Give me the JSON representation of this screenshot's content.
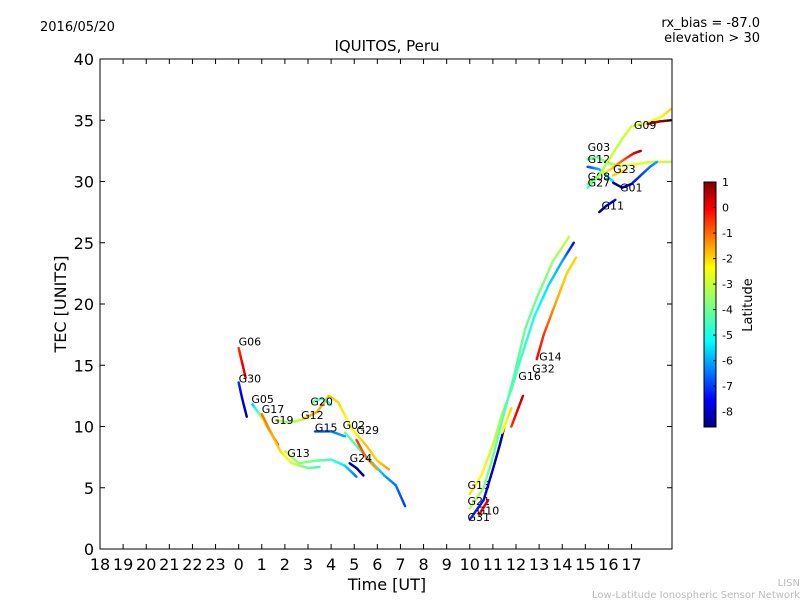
{
  "header": {
    "date": "2016/05/20",
    "rx_bias": "rx_bias = -87.0",
    "elevation": "elevation > 30"
  },
  "footer": {
    "line1": "LISN",
    "line2": "Low-Latitude Ionospheric Sensor Network"
  },
  "chart_data": {
    "type": "scatter",
    "title": "IQUITOS, Peru",
    "xlabel": "Time [UT]",
    "ylabel": "TEC [UNITS]",
    "xlim": [
      18,
      42.75
    ],
    "ylim": [
      0,
      40
    ],
    "x_ticks": [
      18,
      19,
      20,
      21,
      22,
      23,
      24,
      25,
      26,
      27,
      28,
      29,
      30,
      31,
      32,
      33,
      34,
      35,
      36,
      37,
      38,
      39,
      40,
      41
    ],
    "x_tick_labels": [
      "18",
      "19",
      "20",
      "21",
      "22",
      "23",
      "0",
      "1",
      "2",
      "3",
      "4",
      "5",
      "6",
      "7",
      "8",
      "9",
      "10",
      "11",
      "12",
      "13",
      "14",
      "15",
      "16",
      "17"
    ],
    "y_ticks": [
      0,
      5,
      10,
      15,
      20,
      25,
      30,
      35,
      40
    ],
    "grid": false,
    "colorbar": {
      "label": "Latitude",
      "min": -8.6,
      "max": 1,
      "ticks": [
        1,
        0,
        -1,
        -2,
        -3,
        -4,
        -5,
        -6,
        -7,
        -8
      ],
      "colors": [
        "#00007f",
        "#0000ff",
        "#007fff",
        "#00ffff",
        "#7fff7f",
        "#ffff00",
        "#ff7f00",
        "#ff0000",
        "#7f0000"
      ]
    },
    "series": [
      {
        "name": "G06",
        "label_at": [
          24,
          16.6
        ],
        "points": [
          [
            24.0,
            16.4,
            -0.5
          ],
          [
            24.15,
            15.2,
            0.0
          ],
          [
            24.3,
            14.0,
            0.2
          ]
        ]
      },
      {
        "name": "G30",
        "label_at": [
          24,
          13.6
        ],
        "points": [
          [
            24.0,
            13.6,
            -7.0
          ],
          [
            24.15,
            12.3,
            -7.8
          ],
          [
            24.35,
            10.8,
            -8.4
          ]
        ]
      },
      {
        "name": "G05",
        "label_at": [
          24.55,
          11.9
        ],
        "points": [
          [
            24.6,
            11.8,
            -6.0
          ],
          [
            24.9,
            11.0,
            -4.0
          ],
          [
            25.3,
            9.8,
            -1.0
          ],
          [
            25.7,
            8.5,
            0.0
          ]
        ]
      },
      {
        "name": "G17",
        "label_at": [
          25.0,
          11.1
        ],
        "points": [
          [
            25.0,
            11.0,
            -1.0
          ],
          [
            25.4,
            9.5,
            -1.5
          ],
          [
            25.8,
            8.0,
            -2.0
          ],
          [
            26.3,
            7.0,
            -2.8
          ],
          [
            27.0,
            6.6,
            -4.0
          ],
          [
            27.5,
            6.7,
            -4.5
          ]
        ]
      },
      {
        "name": "G19",
        "label_at": [
          25.4,
          10.2
        ],
        "points": [
          [
            25.6,
            10.5,
            -3.0
          ],
          [
            26.2,
            10.3,
            -3.5
          ],
          [
            26.8,
            10.6,
            -3.0
          ]
        ]
      },
      {
        "name": "G12",
        "label_at": [
          26.7,
          10.6
        ],
        "points": [
          [
            26.8,
            10.6,
            -2.0
          ],
          [
            27.4,
            11.2,
            -1.5
          ],
          [
            27.9,
            12.5,
            -1.8
          ],
          [
            28.3,
            12.0,
            -2.0
          ],
          [
            28.9,
            9.8,
            -2.5
          ],
          [
            29.5,
            8.5,
            -1.8
          ],
          [
            30.0,
            7.2,
            -2.0
          ],
          [
            30.5,
            6.5,
            -1.5
          ]
        ]
      },
      {
        "name": "G20",
        "label_at": [
          27.1,
          11.7
        ],
        "points": [
          [
            27.2,
            12.0,
            -4.0
          ],
          [
            27.6,
            12.3,
            -4.5
          ],
          [
            28.0,
            11.8,
            -5.0
          ]
        ]
      },
      {
        "name": "G15",
        "label_at": [
          27.3,
          9.6
        ],
        "points": [
          [
            27.3,
            9.6,
            -7.0
          ],
          [
            28.0,
            9.6,
            -6.5
          ],
          [
            28.6,
            9.2,
            -6.0
          ]
        ]
      },
      {
        "name": "G13",
        "label_at": [
          26.1,
          7.5
        ],
        "points": [
          [
            26.0,
            8.0,
            -3.0
          ],
          [
            26.6,
            7.0,
            -3.5
          ],
          [
            27.3,
            7.2,
            -4.0
          ],
          [
            28.0,
            7.3,
            -4.5
          ],
          [
            28.6,
            6.8,
            -5.5
          ],
          [
            29.1,
            5.9,
            -6.5
          ]
        ]
      },
      {
        "name": "G02",
        "label_at": [
          28.5,
          9.8
        ],
        "points": [
          [
            28.6,
            9.5,
            -4.0
          ],
          [
            29.2,
            8.2,
            -4.5
          ],
          [
            29.8,
            7.0,
            -5.0
          ],
          [
            30.3,
            6.0,
            -6.0
          ],
          [
            30.8,
            5.2,
            -6.5
          ],
          [
            31.2,
            3.5,
            -7.0
          ]
        ]
      },
      {
        "name": "G29",
        "label_at": [
          29.1,
          9.4
        ],
        "points": [
          [
            29.1,
            8.9,
            -0.5
          ],
          [
            29.5,
            7.5,
            -1.0
          ],
          [
            30.0,
            6.5,
            -1.5
          ]
        ]
      },
      {
        "name": "G24",
        "label_at": [
          28.8,
          7.1
        ],
        "points": [
          [
            28.8,
            7.0,
            -8.0
          ],
          [
            29.1,
            6.6,
            -8.3
          ],
          [
            29.4,
            6.0,
            -8.5
          ]
        ]
      },
      {
        "name": "G18",
        "label_at": [
          33.9,
          4.9
        ],
        "points": [
          [
            34.0,
            4.5,
            -2.0
          ],
          [
            34.5,
            6.0,
            -2.5
          ],
          [
            35.0,
            8.5,
            -3.0
          ],
          [
            35.4,
            11.0,
            -3.5
          ],
          [
            35.8,
            13.0,
            -4.0
          ],
          [
            36.2,
            15.5,
            -4.5
          ],
          [
            36.8,
            19.0,
            -5.0
          ],
          [
            37.4,
            21.5,
            -5.5
          ],
          [
            38.0,
            23.5,
            -6.0
          ],
          [
            38.5,
            25.0,
            -7.5
          ]
        ]
      },
      {
        "name": "G21",
        "label_at": [
          33.9,
          3.6
        ],
        "points": [
          [
            34.0,
            3.3,
            -3.0
          ],
          [
            34.6,
            5.0,
            -3.5
          ],
          [
            35.0,
            7.5,
            -4.0
          ],
          [
            35.4,
            10.5,
            -4.2
          ],
          [
            35.9,
            14.0,
            -4.5
          ],
          [
            36.4,
            18.0,
            -4.0
          ],
          [
            36.9,
            20.5,
            -4.0
          ],
          [
            37.6,
            23.5,
            -3.5
          ],
          [
            38.3,
            25.5,
            -3.0
          ]
        ]
      },
      {
        "name": "G10",
        "label_at": [
          34.3,
          2.8
        ],
        "points": [
          [
            34.4,
            2.8,
            0.0
          ],
          [
            34.8,
            4.0,
            0.3
          ]
        ]
      },
      {
        "name": "G31",
        "label_at": [
          33.9,
          2.3
        ],
        "points": [
          [
            34.0,
            2.4,
            -7.0
          ],
          [
            34.6,
            4.0,
            -7.5
          ],
          [
            35.0,
            6.5,
            -8.0
          ],
          [
            35.3,
            8.5,
            -8.5
          ],
          [
            35.5,
            10.0,
            -8.0
          ]
        ]
      },
      {
        "name": "G16",
        "label_at": [
          36.1,
          13.8
        ],
        "points": [
          [
            35.4,
            9.5,
            -2.5
          ],
          [
            35.8,
            11.5,
            -2.0
          ]
        ]
      },
      {
        "name": "G32",
        "label_at": [
          36.7,
          14.4
        ],
        "points": [
          [
            35.8,
            10.0,
            -0.5
          ],
          [
            36.3,
            12.5,
            0.5
          ]
        ]
      },
      {
        "name": "G14",
        "label_at": [
          37.0,
          15.4
        ],
        "points": [
          [
            36.9,
            15.5,
            0.0
          ],
          [
            37.2,
            17.5,
            -0.5
          ],
          [
            37.7,
            20.0,
            -1.5
          ],
          [
            38.2,
            22.5,
            -2.0
          ],
          [
            38.6,
            23.8,
            -2.0
          ]
        ]
      },
      {
        "name": "G03",
        "label_at": [
          39.1,
          32.5
        ],
        "points": [
          [
            39.1,
            31.8,
            -4.5
          ],
          [
            39.5,
            32.0,
            -4.0
          ],
          [
            40.0,
            31.5,
            -3.5
          ],
          [
            40.5,
            31.3,
            -3.0
          ],
          [
            41.2,
            31.4,
            -2.5
          ],
          [
            41.8,
            31.6,
            -2.8
          ],
          [
            42.7,
            31.6,
            -3.0
          ]
        ]
      },
      {
        "name": "G12",
        "label_at": [
          39.1,
          31.5
        ],
        "points": [
          [
            39.1,
            31.2,
            -7.0
          ],
          [
            39.6,
            31.0,
            -6.0
          ],
          [
            40.2,
            30.0,
            -5.5
          ]
        ]
      },
      {
        "name": "G08",
        "label_at": [
          39.1,
          30.1
        ],
        "points": [
          [
            39.1,
            29.8,
            -4.0
          ],
          [
            39.6,
            30.5,
            -3.0
          ],
          [
            40.1,
            31.0,
            -2.0
          ],
          [
            40.6,
            31.7,
            -1.0
          ],
          [
            41.1,
            32.3,
            0.0
          ],
          [
            41.4,
            32.5,
            0.5
          ]
        ]
      },
      {
        "name": "G27",
        "label_at": [
          39.1,
          29.6
        ],
        "points": [
          [
            39.1,
            29.5,
            -4.5
          ],
          [
            39.6,
            30.5,
            -3.5
          ],
          [
            40.1,
            32.0,
            -3.0
          ],
          [
            40.6,
            33.5,
            -3.0
          ],
          [
            41.0,
            34.5,
            -2.8
          ],
          [
            41.7,
            34.8,
            -2.6
          ],
          [
            42.3,
            35.3,
            -2.3
          ],
          [
            42.7,
            35.9,
            -2.0
          ]
        ]
      },
      {
        "name": "G23",
        "label_at": [
          40.2,
          30.7
        ],
        "points": [
          [
            40.2,
            30.5,
            -2.0
          ],
          [
            40.8,
            31.0,
            -2.0
          ]
        ]
      },
      {
        "name": "G01",
        "label_at": [
          40.5,
          29.2
        ],
        "points": [
          [
            40.2,
            29.9,
            -8.0
          ],
          [
            40.6,
            29.5,
            -8.5
          ],
          [
            41.0,
            29.8,
            -7.5
          ],
          [
            41.4,
            30.5,
            -7.0
          ],
          [
            41.8,
            31.2,
            -6.5
          ],
          [
            42.1,
            31.6,
            -6.0
          ]
        ]
      },
      {
        "name": "G11",
        "label_at": [
          39.7,
          27.7
        ],
        "points": [
          [
            39.6,
            27.5,
            -8.5
          ],
          [
            39.9,
            28.0,
            -8.0
          ],
          [
            40.3,
            28.5,
            -7.5
          ]
        ]
      },
      {
        "name": "G09",
        "label_at": [
          41.1,
          34.3
        ],
        "points": [
          [
            41.7,
            34.7,
            0.5
          ],
          [
            42.2,
            34.9,
            0.8
          ],
          [
            42.7,
            35.0,
            1.0
          ]
        ]
      }
    ]
  }
}
